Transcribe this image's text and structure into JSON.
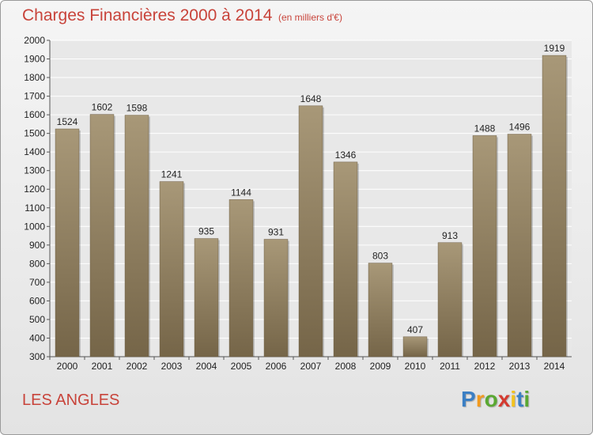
{
  "header": {
    "title": "Charges Financières 2000 à 2014",
    "unit": "(en milliers d'€)"
  },
  "footer": {
    "commune": "LES ANGLES",
    "logo": "Proxiti"
  },
  "colors": {
    "title": "#c8433a",
    "bar_top": "#a89878",
    "bar_bottom": "#756548",
    "grid": "#ffffff",
    "background": "#e8e8e8"
  },
  "chart_data": {
    "type": "bar",
    "title": "Charges Financières 2000 à 2014",
    "subtitle": "(en milliers d'€)",
    "categories": [
      "2000",
      "2001",
      "2002",
      "2003",
      "2004",
      "2005",
      "2006",
      "2007",
      "2008",
      "2009",
      "2010",
      "2011",
      "2012",
      "2013",
      "2014"
    ],
    "values": [
      1524,
      1602,
      1598,
      1241,
      935,
      1144,
      931,
      1648,
      1346,
      803,
      407,
      913,
      1488,
      1496,
      1919
    ],
    "ylim": [
      300,
      2000
    ],
    "yticks": [
      300,
      400,
      500,
      600,
      700,
      800,
      900,
      1000,
      1100,
      1200,
      1300,
      1400,
      1500,
      1600,
      1700,
      1800,
      1900,
      2000
    ],
    "grid": true,
    "legend": "none"
  }
}
